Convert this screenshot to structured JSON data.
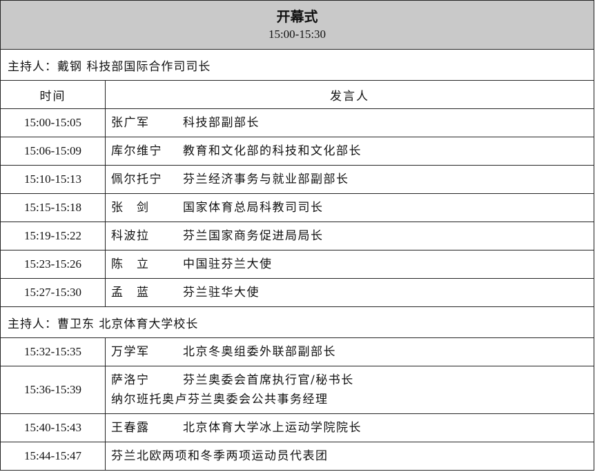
{
  "header": {
    "title": "开幕式",
    "time": "15:00-15:30"
  },
  "columns": [
    "时间",
    "发言人"
  ],
  "sections": [
    {
      "host": "主持人：戴钢 科技部国际合作司司长",
      "rows": [
        {
          "time": "15:00-15:05",
          "speakers": [
            {
              "name": "张广军",
              "title": "科技部副部长"
            }
          ]
        },
        {
          "time": "15:06-15:09",
          "speakers": [
            {
              "name": "库尔维宁",
              "title": "教育和文化部的科技和文化部长"
            }
          ]
        },
        {
          "time": "15:10-15:13",
          "speakers": [
            {
              "name": "佩尔托宁",
              "title": "芬兰经济事务与就业部副部长"
            }
          ]
        },
        {
          "time": "15:15-15:18",
          "speakers": [
            {
              "name": "张　剑",
              "title": "国家体育总局科教司司长"
            }
          ]
        },
        {
          "time": "15:19-15:22",
          "speakers": [
            {
              "name": "科波拉",
              "title": "芬兰国家商务促进局局长"
            }
          ]
        },
        {
          "time": "15:23-15:26",
          "speakers": [
            {
              "name": "陈　立",
              "title": "中国驻芬兰大使"
            }
          ]
        },
        {
          "time": "15:27-15:30",
          "speakers": [
            {
              "name": "孟　蓝",
              "title": "芬兰驻华大使"
            }
          ]
        }
      ]
    },
    {
      "host": "主持人：曹卫东 北京体育大学校长",
      "rows": [
        {
          "time": "15:32-15:35",
          "speakers": [
            {
              "name": "万学军",
              "title": "北京冬奥组委外联部副部长"
            }
          ]
        },
        {
          "time": "15:36-15:39",
          "speakers": [
            {
              "name": "萨洛宁",
              "title": "芬兰奥委会首席执行官/秘书长"
            },
            {
              "name": "纳尔班托奥卢",
              "title": "芬兰奥委会公共事务经理"
            }
          ]
        },
        {
          "time": "15:40-15:43",
          "speakers": [
            {
              "name": "王春露",
              "title": "北京体育大学冰上运动学院院长"
            }
          ]
        },
        {
          "time": "15:44-15:47",
          "speakers": [
            {
              "title": "芬兰北欧两项和冬季两项运动员代表团"
            }
          ]
        }
      ]
    }
  ]
}
